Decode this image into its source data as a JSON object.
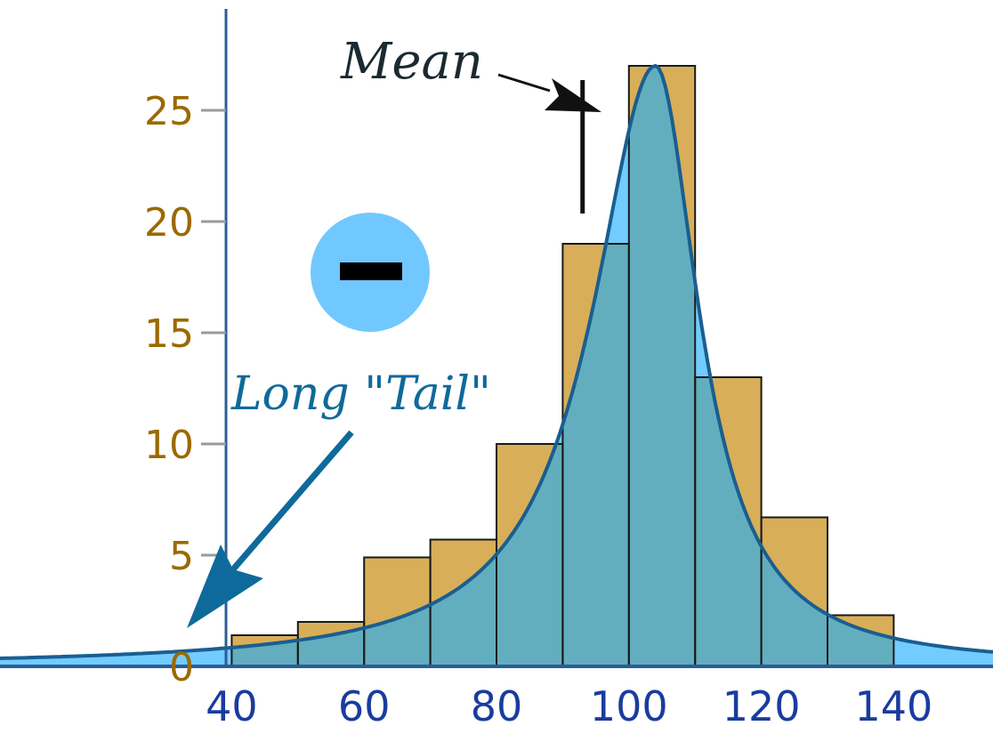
{
  "chart_data": {
    "type": "bar",
    "x_bins": [
      {
        "from": 40,
        "to": 50
      },
      {
        "from": 50,
        "to": 60
      },
      {
        "from": 60,
        "to": 70
      },
      {
        "from": 70,
        "to": 80
      },
      {
        "from": 80,
        "to": 90
      },
      {
        "from": 90,
        "to": 100
      },
      {
        "from": 100,
        "to": 110
      },
      {
        "from": 110,
        "to": 120
      },
      {
        "from": 120,
        "to": 130
      },
      {
        "from": 130,
        "to": 140
      }
    ],
    "values": [
      1.4,
      2.0,
      4.9,
      5.7,
      10.0,
      19.0,
      27.0,
      13.0,
      6.7,
      2.3
    ],
    "curve_peak_x": 104,
    "curve_peak_y": 27,
    "mean_x": 93,
    "xlim": [
      5,
      155
    ],
    "ylim": [
      0,
      28
    ],
    "x_ticks": [
      "40",
      "60",
      "80",
      "100",
      "120",
      "140"
    ],
    "x_tick_values": [
      40,
      60,
      80,
      100,
      120,
      140
    ],
    "y_ticks": [
      "0",
      "5",
      "10",
      "15",
      "20",
      "25"
    ],
    "y_tick_values": [
      0,
      5,
      10,
      15,
      20,
      25
    ],
    "annotations": {
      "mean": "Mean",
      "tail": "Long \"Tail\"",
      "skew_symbol": "negative"
    },
    "colors": {
      "bar": "#d8ae58",
      "curve_fill": "#72ccff",
      "overlap": "#62aebf",
      "curve_line": "#1a5e90",
      "axis": "#2a5e92",
      "minus_circle": "#70c8ff"
    }
  }
}
